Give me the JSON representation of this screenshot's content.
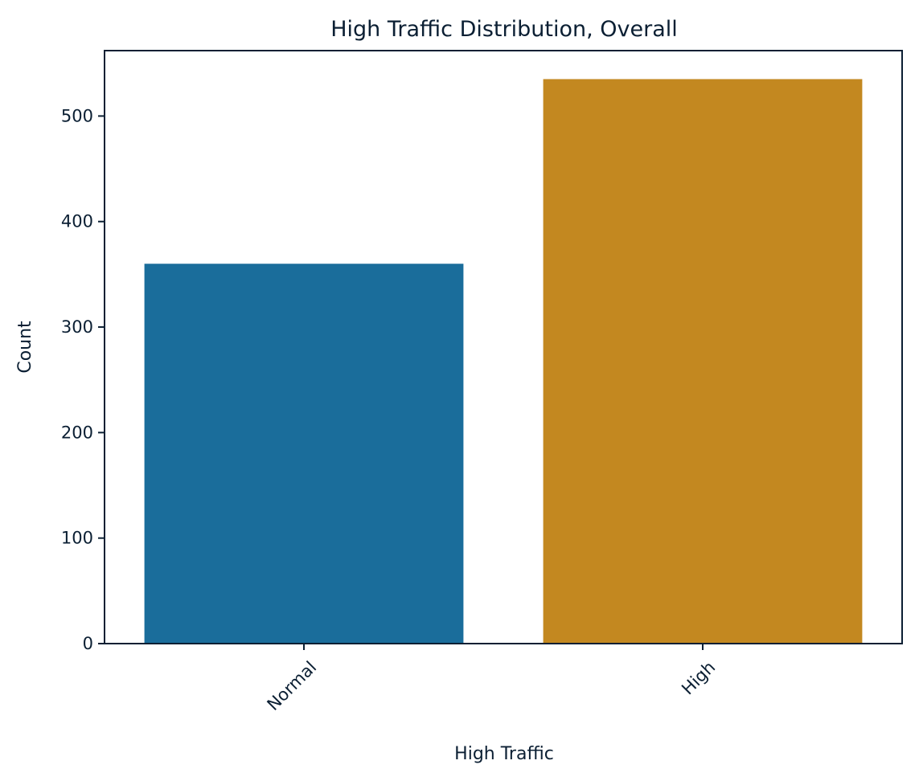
{
  "chart_data": {
    "type": "bar",
    "title": "High Traffic Distribution, Overall",
    "xlabel": "High Traffic",
    "ylabel": "Count",
    "categories": [
      "Normal",
      "High"
    ],
    "values": [
      360,
      535
    ],
    "bar_colors": [
      "#1a6d9b",
      "#c38820"
    ],
    "ylim": [
      0,
      562
    ],
    "yticks": [
      0,
      100,
      200,
      300,
      400,
      500
    ],
    "ytick_labels": [
      "0",
      "100",
      "200",
      "300",
      "400",
      "500"
    ],
    "xtick_rotation": 45,
    "grid": false,
    "text_color": "#0b1f33"
  }
}
